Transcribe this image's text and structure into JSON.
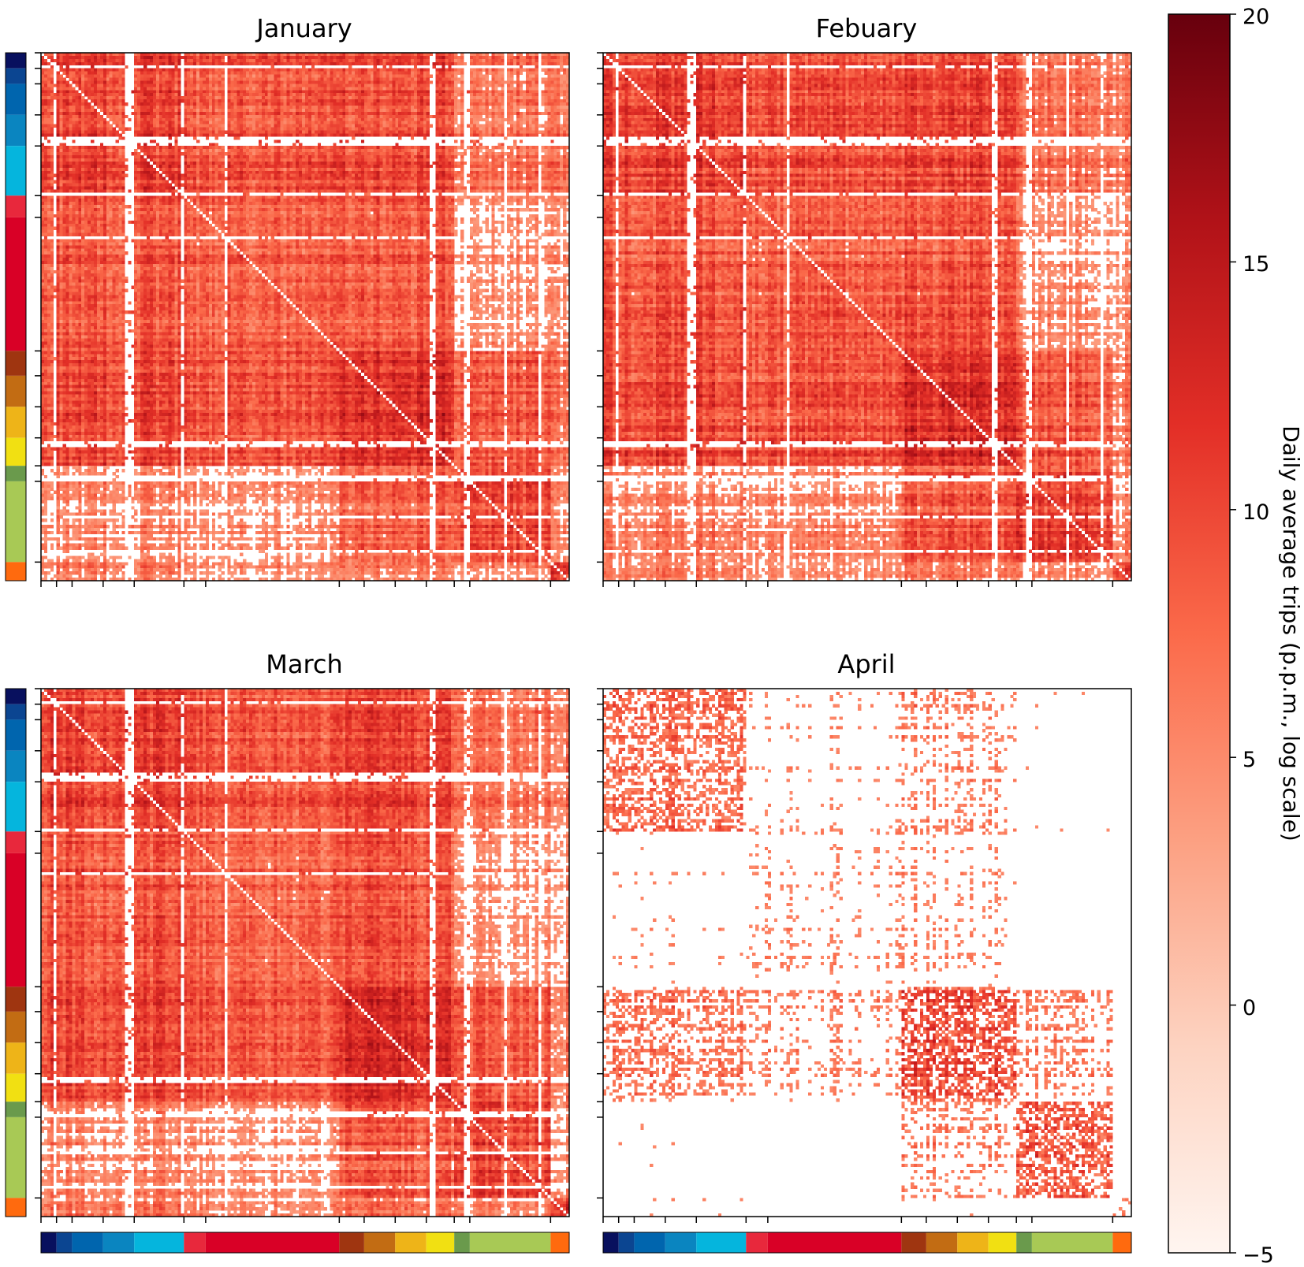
{
  "chart_data": {
    "type": "heatmap",
    "description_note": "Four origin-destination trip matrices (regions grouped by color strips) for January-April",
    "panels": [
      {
        "title": "January",
        "pattern": "dense"
      },
      {
        "title": "Febuary",
        "pattern": "dense"
      },
      {
        "title": "March",
        "pattern": "dense"
      },
      {
        "title": "April",
        "pattern": "sparse"
      }
    ],
    "matrix_size": 170,
    "group_boundaries": [
      0,
      5,
      10,
      20,
      30,
      46,
      53,
      96,
      104,
      114,
      124,
      133,
      138,
      164,
      170
    ],
    "group_colors": [
      "#08105e",
      "#0b4591",
      "#0065ae",
      "#0a85c0",
      "#05b5dd",
      "#e8283c",
      "#d90026",
      "#9f3510",
      "#c26c13",
      "#eeb418",
      "#f1e012",
      "#6a9a4c",
      "#a8c955",
      "#ff6a0e"
    ],
    "colorbar": {
      "label": "Daily average trips (p.p.m., log scale)",
      "min": -5,
      "max": 20,
      "ticks": [
        "20",
        "15",
        "10",
        "5",
        "0",
        "−5"
      ],
      "tick_values": [
        20,
        15,
        10,
        5,
        0,
        -5
      ],
      "colors": [
        "#fff5f0",
        "#fdd3c1",
        "#fca082",
        "#fb6a4a",
        "#e32f27",
        "#b11218",
        "#67000d"
      ]
    }
  }
}
